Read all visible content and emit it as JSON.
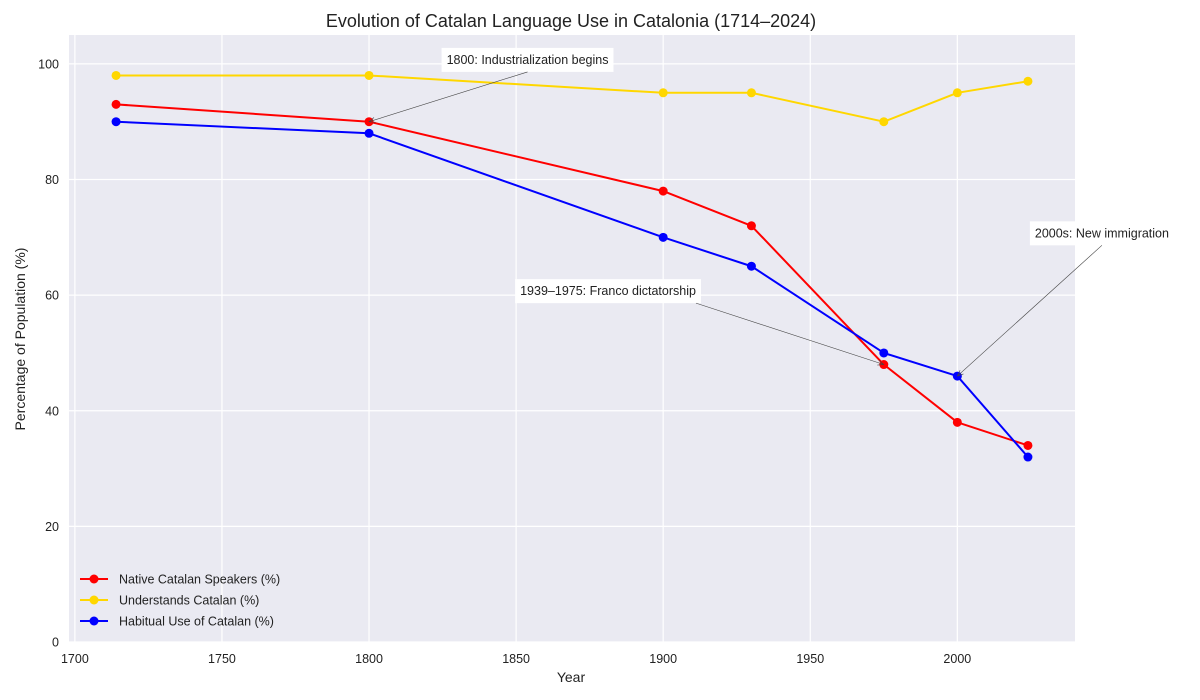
{
  "chart_data": {
    "type": "line",
    "title": "Evolution of Catalan Language Use in Catalonia (1714–2024)",
    "xlabel": "Year",
    "ylabel": "Percentage of Population (%)",
    "xlim": [
      1698,
      2040
    ],
    "ylim": [
      0,
      105
    ],
    "xticks": [
      1700,
      1750,
      1800,
      1850,
      1900,
      1950,
      2000
    ],
    "yticks": [
      0,
      20,
      40,
      60,
      80,
      100
    ],
    "grid": true,
    "legend_position": "lower-left",
    "x": [
      1714,
      1800,
      1900,
      1930,
      1975,
      2000,
      2024
    ],
    "series": [
      {
        "name": "Native Catalan Speakers (%)",
        "color": "#ff0000",
        "values": [
          93,
          90,
          78,
          72,
          48,
          38,
          34
        ]
      },
      {
        "name": "Understands Catalan (%)",
        "color": "#ffd700",
        "values": [
          98,
          98,
          95,
          95,
          90,
          95,
          97
        ]
      },
      {
        "name": "Habitual Use of Catalan (%)",
        "color": "#0000ff",
        "values": [
          90,
          88,
          70,
          65,
          50,
          46,
          32
        ]
      }
    ],
    "annotations": [
      {
        "text": "1800: Industrialization begins",
        "point": [
          1800,
          90
        ],
        "text_at": [
          1825,
          100
        ]
      },
      {
        "text": "1939–1975: Franco dictatorship",
        "point": [
          1975,
          48
        ],
        "text_at": [
          1850,
          60
        ]
      },
      {
        "text": "2000s: New immigration",
        "point": [
          2000,
          46
        ],
        "text_at": [
          2025,
          70
        ]
      }
    ]
  }
}
